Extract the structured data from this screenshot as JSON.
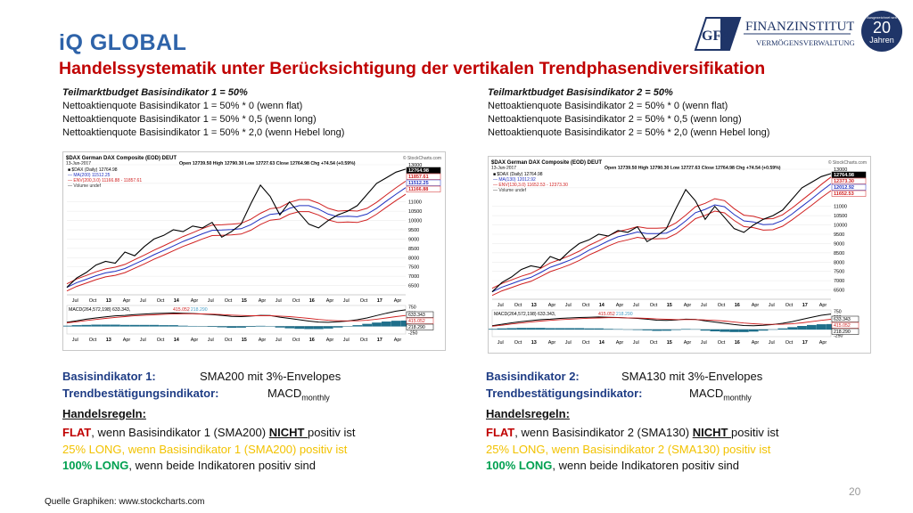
{
  "header": {
    "title": "iQ GLOBAL",
    "subtitle": "Handelssystematik unter Berücksichtigung der vertikalen Trendphasendiversifikation",
    "logo_gfa": "GFA",
    "logo_name": "FINANZINSTITUT",
    "logo_tagline": "VERMÖGENSVERWALTUNG",
    "badge_small": "Ausgezeichnet seit",
    "badge_number": "20",
    "badge_label": "Jahren"
  },
  "left": {
    "budget_heading": "Teilmarktbudget Basisindikator 1 = 50%",
    "budget_lines": [
      "Nettoaktienquote Basisindikator 1 = 50% * 0 (wenn flat)",
      "Nettoaktienquote Basisindikator 1 = 50% * 0,5 (wenn long)",
      "Nettoaktienquote Basisindikator 1 = 50% * 2,0 (wenn Hebel long)"
    ],
    "basis_label": "Basisindikator 1:",
    "basis_value": "SMA200 mit 3%-Envelopes",
    "trend_label": "Trendbestätigungsindikator:",
    "trend_value": "MACD",
    "trend_sub": "monthly",
    "rules_label": "Handelsregeln:",
    "rule_flat_key": "FLAT",
    "rule_flat_a": ", wenn Basisindikator 1 (SMA200) ",
    "rule_flat_nicht": "NICHT ",
    "rule_flat_b": "positiv ist",
    "rule_25": "25% LONG, wenn Basisindikator 1 (SMA200) positiv ist",
    "rule_100_key": "100% LONG",
    "rule_100": ", wenn beide Indikatoren positiv sind"
  },
  "right": {
    "budget_heading": "Teilmarktbudget Basisindikator 2 = 50%",
    "budget_lines": [
      "Nettoaktienquote Basisindikator 2 = 50% * 0 (wenn flat)",
      "Nettoaktienquote Basisindikator 2 = 50% * 0,5 (wenn long)",
      "Nettoaktienquote Basisindikator 2 = 50% * 2,0 (wenn Hebel long)"
    ],
    "basis_label": "Basisindikator 2:",
    "basis_value": "SMA130 mit 3%-Envelopes",
    "trend_label": "Trendbestätigungsindikator:",
    "trend_value": "MACD",
    "trend_sub": "monthly",
    "rules_label": "Handelsregeln:",
    "rule_flat_key": "FLAT",
    "rule_flat_a": ", wenn Basisindikator 2 (SMA130) ",
    "rule_flat_nicht": "NICHT ",
    "rule_flat_b": "positiv ist",
    "rule_25": "25% LONG, wenn Basisindikator 2 (SMA130) positiv ist",
    "rule_100_key": "100% LONG",
    "rule_100": ", wenn beide Indikatoren positiv sind"
  },
  "footer": {
    "source": "Quelle Graphiken: www.stockcharts.com",
    "page": "20"
  },
  "colors": {
    "title_blue": "#2e63a9",
    "subtitle_red": "#c00000",
    "label_blue": "#1f3d85",
    "flat_red": "#c00000",
    "long25_yellow": "#f2c200",
    "long100_green": "#00a050",
    "macd_teal": "#1f6f8b",
    "env_red": "#d02020",
    "ma_blue": "#2030c0"
  },
  "chart_data": [
    {
      "type": "line",
      "panel": "left",
      "symbol": "$DAX German DAX Composite (EOD) DEUT",
      "date": "13-Jun-2017",
      "watermark": "© StockCharts.com",
      "ohlc_text": "Open 12739.50  High 12790.30  Low 12727.63  Close 12764.98  Chg +74.54 (+0.59%)",
      "legend": [
        "■ $DAX (Daily) 12764.98",
        "— MA(200) 11512.25",
        "— ENV(200,3.0) 11166.88 - 11857.61",
        "— Volume undef"
      ],
      "price_labels": [
        "12764.98",
        "11857.61",
        "11512.25",
        "11166.88"
      ],
      "y_ticks": [
        13000,
        12000,
        11000,
        10500,
        10000,
        9500,
        9000,
        8500,
        8000,
        7500,
        7000,
        6500
      ],
      "ylim": [
        6000,
        13000
      ],
      "x_labels": [
        "Jul",
        "Oct",
        "13",
        "Apr",
        "Jul",
        "Oct",
        "14",
        "Apr",
        "Jul",
        "Oct",
        "15",
        "Apr",
        "Jul",
        "Oct",
        "16",
        "Apr",
        "Jul",
        "Oct",
        "17",
        "Apr"
      ],
      "price": [
        6400,
        6900,
        7200,
        7600,
        7800,
        7700,
        8300,
        8100,
        8600,
        9000,
        9200,
        9500,
        9400,
        9700,
        9600,
        9900,
        9100,
        9400,
        9800,
        10900,
        11900,
        11300,
        10300,
        11000,
        10400,
        9800,
        9600,
        10000,
        10300,
        10500,
        10800,
        11400,
        12000,
        12300,
        12600,
        12765
      ],
      "ma_label": "MA(200)",
      "ma_window": 6,
      "envelope_pct": 3,
      "macd_legend": [
        "MACD(264,572,198) 633.343, ",
        "415.052",
        ", 218.290"
      ],
      "macd_y_ticks": [
        750,
        500,
        250,
        0,
        -250
      ],
      "macd_labels": [
        "633.343",
        "415.052",
        "218.290"
      ],
      "macd_ylim": [
        -300,
        800
      ],
      "macd": [
        150,
        210,
        270,
        320,
        360,
        400,
        420,
        450,
        470,
        490,
        500,
        510,
        500,
        490,
        470,
        450,
        420,
        380,
        370,
        390,
        420,
        410,
        350,
        300,
        250,
        200,
        160,
        150,
        170,
        200,
        250,
        320,
        410,
        500,
        580,
        633
      ],
      "signal": [
        130,
        170,
        220,
        260,
        300,
        340,
        370,
        400,
        420,
        440,
        460,
        470,
        480,
        480,
        475,
        465,
        450,
        430,
        415,
        405,
        405,
        405,
        390,
        370,
        340,
        300,
        260,
        230,
        210,
        205,
        210,
        230,
        270,
        320,
        370,
        415
      ]
    },
    {
      "type": "line",
      "panel": "right",
      "symbol": "$DAX German DAX Composite (EOD) DEUT",
      "date": "13-Jun-2017",
      "watermark": "© StockCharts.com",
      "ohlc_text": "Open 12739.50  High 12790.30  Low 12727.63  Close 12764.98  Chg +74.54 (+0.59%)",
      "legend": [
        "■ $DAX (Daily) 12764.98",
        "— MA(130) 12012.92",
        "— ENV(130,3.0) 11652.53 - 12373.30",
        "— Volume undef"
      ],
      "price_labels": [
        "12764.98",
        "12373.30",
        "12012.92",
        "11652.53"
      ],
      "y_ticks": [
        13000,
        12000,
        11000,
        10500,
        10000,
        9500,
        9000,
        8500,
        8000,
        7500,
        7000,
        6500
      ],
      "ylim": [
        6000,
        13000
      ],
      "x_labels": [
        "Jul",
        "Oct",
        "13",
        "Apr",
        "Jul",
        "Oct",
        "14",
        "Apr",
        "Jul",
        "Oct",
        "15",
        "Apr",
        "Jul",
        "Oct",
        "16",
        "Apr",
        "Jul",
        "Oct",
        "17",
        "Apr"
      ],
      "price": [
        6400,
        6900,
        7200,
        7600,
        7800,
        7700,
        8300,
        8100,
        8600,
        9000,
        9200,
        9500,
        9400,
        9700,
        9600,
        9900,
        9100,
        9400,
        9800,
        10900,
        11900,
        11300,
        10300,
        11000,
        10400,
        9800,
        9600,
        10000,
        10300,
        10500,
        10800,
        11400,
        12000,
        12300,
        12600,
        12765
      ],
      "ma_label": "MA(130)",
      "ma_window": 4,
      "envelope_pct": 3,
      "macd_legend": [
        "MACD(264,572,198) 633.343, ",
        "415.052",
        ", 218.290"
      ],
      "macd_y_ticks": [
        750,
        500,
        250,
        0,
        -250
      ],
      "macd_labels": [
        "633.343",
        "415.052",
        "218.290"
      ],
      "macd_ylim": [
        -300,
        800
      ],
      "macd": [
        150,
        210,
        270,
        320,
        360,
        400,
        420,
        450,
        470,
        490,
        500,
        510,
        500,
        490,
        470,
        450,
        420,
        380,
        370,
        390,
        420,
        410,
        350,
        300,
        250,
        200,
        160,
        150,
        170,
        200,
        250,
        320,
        410,
        500,
        580,
        633
      ],
      "signal": [
        130,
        170,
        220,
        260,
        300,
        340,
        370,
        400,
        420,
        440,
        460,
        470,
        480,
        480,
        475,
        465,
        450,
        430,
        415,
        405,
        405,
        405,
        390,
        370,
        340,
        300,
        260,
        230,
        210,
        205,
        210,
        230,
        270,
        320,
        370,
        415
      ]
    }
  ]
}
